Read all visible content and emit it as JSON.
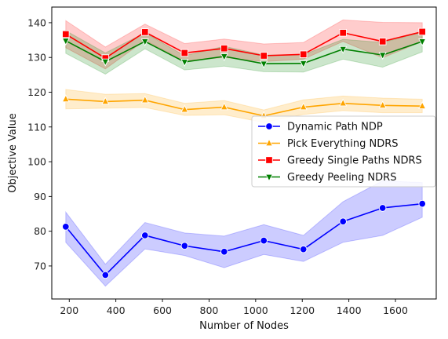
{
  "chart_data": {
    "type": "line",
    "title": "",
    "xlabel": "Number of Nodes",
    "ylabel": "Objective Value",
    "xlim": [
      125,
      1775
    ],
    "ylim": [
      60.5,
      144.5
    ],
    "xticks": [
      200,
      400,
      600,
      800,
      1000,
      1200,
      1400,
      1600
    ],
    "yticks": [
      70,
      80,
      90,
      100,
      110,
      120,
      130,
      140
    ],
    "grid": false,
    "legend_position": "center-right",
    "x": [
      185,
      355,
      525,
      695,
      865,
      1035,
      1205,
      1375,
      1545,
      1715
    ],
    "series": [
      {
        "name": "Dynamic Path NDP",
        "color": "#0000ff",
        "marker": "circle",
        "values": [
          81.3,
          67.4,
          78.8,
          75.8,
          74.1,
          77.3,
          74.8,
          82.8,
          86.7,
          87.9
        ],
        "ci_low": [
          76.8,
          64.2,
          74.9,
          73.0,
          69.5,
          73.3,
          71.3,
          76.8,
          78.8,
          84.0
        ],
        "ci_high": [
          85.5,
          70.5,
          82.5,
          79.5,
          78.6,
          81.9,
          78.8,
          88.5,
          94.5,
          94.0
        ]
      },
      {
        "name": "Pick Everything NDRS",
        "color": "#ffa500",
        "marker": "triangle-up",
        "values": [
          118.0,
          117.3,
          117.7,
          115.0,
          115.7,
          113.2,
          115.7,
          116.8,
          116.2,
          116.0
        ],
        "ci_low": [
          115.2,
          115.4,
          115.6,
          113.3,
          113.5,
          111.3,
          113.6,
          114.7,
          114.1,
          114.1
        ],
        "ci_high": [
          120.8,
          119.4,
          119.6,
          116.8,
          117.6,
          114.9,
          117.8,
          118.9,
          118.3,
          118.0
        ]
      },
      {
        "name": "Greedy Single Paths NDRS",
        "color": "#ff0000",
        "marker": "square",
        "values": [
          136.7,
          129.8,
          137.3,
          131.3,
          132.6,
          130.5,
          130.9,
          137.1,
          134.6,
          137.4
        ],
        "ci_low": [
          132.8,
          126.7,
          134.9,
          129.0,
          130.0,
          128.8,
          129.5,
          134.6,
          129.9,
          134.6
        ],
        "ci_high": [
          140.6,
          133.0,
          139.6,
          134.0,
          135.3,
          133.9,
          134.3,
          140.8,
          140.1,
          140.0
        ]
      },
      {
        "name": "Greedy Peeling NDRS",
        "color": "#008000",
        "marker": "triangle-down",
        "values": [
          134.8,
          128.8,
          134.6,
          128.7,
          130.3,
          128.2,
          128.3,
          132.4,
          130.7,
          134.6
        ],
        "ci_low": [
          131.2,
          125.2,
          132.5,
          126.4,
          127.5,
          125.9,
          125.8,
          129.5,
          127.2,
          131.6
        ],
        "ci_high": [
          137.7,
          131.3,
          137.1,
          130.5,
          133.2,
          130.7,
          130.8,
          135.2,
          134.3,
          137.3
        ]
      }
    ]
  }
}
